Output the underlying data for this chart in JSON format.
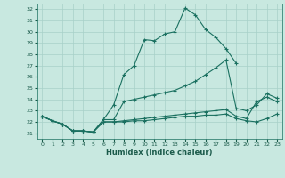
{
  "xlabel": "Humidex (Indice chaleur)",
  "xlim": [
    -0.5,
    23.5
  ],
  "ylim": [
    20.5,
    32.5
  ],
  "xticks": [
    0,
    1,
    2,
    3,
    4,
    5,
    6,
    7,
    8,
    9,
    10,
    11,
    12,
    13,
    14,
    15,
    16,
    17,
    18,
    19,
    20,
    21,
    22,
    23
  ],
  "yticks": [
    21,
    22,
    23,
    24,
    25,
    26,
    27,
    28,
    29,
    30,
    31,
    32
  ],
  "bg_color": "#c8e8e0",
  "grid_color": "#a8d0c8",
  "line_color": "#1a7060",
  "line1_x": [
    0,
    1,
    2,
    3,
    4,
    5,
    6,
    7,
    8,
    9,
    10,
    11,
    12,
    13,
    14,
    15,
    16,
    17,
    18,
    19
  ],
  "line1_y": [
    22.5,
    22.1,
    21.8,
    21.2,
    21.2,
    21.1,
    22.2,
    23.5,
    26.2,
    27.0,
    29.3,
    29.2,
    29.8,
    30.0,
    32.1,
    31.5,
    30.2,
    29.5,
    28.5,
    27.2
  ],
  "line2_x": [
    0,
    1,
    2,
    3,
    4,
    5,
    6,
    7,
    8,
    9,
    10,
    11,
    12,
    13,
    14,
    15,
    16,
    17,
    18,
    19,
    20,
    21,
    22,
    23
  ],
  "line2_y": [
    22.5,
    22.1,
    21.8,
    21.2,
    21.2,
    21.1,
    22.2,
    22.2,
    23.8,
    24.0,
    24.2,
    24.4,
    24.6,
    24.8,
    25.2,
    25.6,
    26.2,
    26.8,
    27.5,
    23.2,
    23.0,
    23.5,
    24.5,
    24.1
  ],
  "line3_x": [
    0,
    1,
    2,
    3,
    4,
    5,
    6,
    7,
    8,
    9,
    10,
    11,
    12,
    13,
    14,
    15,
    16,
    17,
    18,
    19,
    20,
    21,
    22,
    23
  ],
  "line3_y": [
    22.5,
    22.1,
    21.8,
    21.2,
    21.2,
    21.1,
    22.0,
    22.0,
    22.1,
    22.2,
    22.3,
    22.4,
    22.5,
    22.6,
    22.7,
    22.8,
    22.9,
    23.0,
    23.1,
    22.5,
    22.3,
    23.8,
    24.2,
    23.8
  ],
  "line4_x": [
    0,
    1,
    2,
    3,
    4,
    5,
    6,
    7,
    8,
    9,
    10,
    11,
    12,
    13,
    14,
    15,
    16,
    17,
    18,
    19,
    20,
    21,
    22,
    23
  ],
  "line4_y": [
    22.5,
    22.1,
    21.8,
    21.2,
    21.2,
    21.1,
    22.0,
    22.0,
    22.0,
    22.1,
    22.1,
    22.2,
    22.3,
    22.4,
    22.5,
    22.5,
    22.6,
    22.6,
    22.7,
    22.3,
    22.1,
    22.0,
    22.3,
    22.7
  ]
}
